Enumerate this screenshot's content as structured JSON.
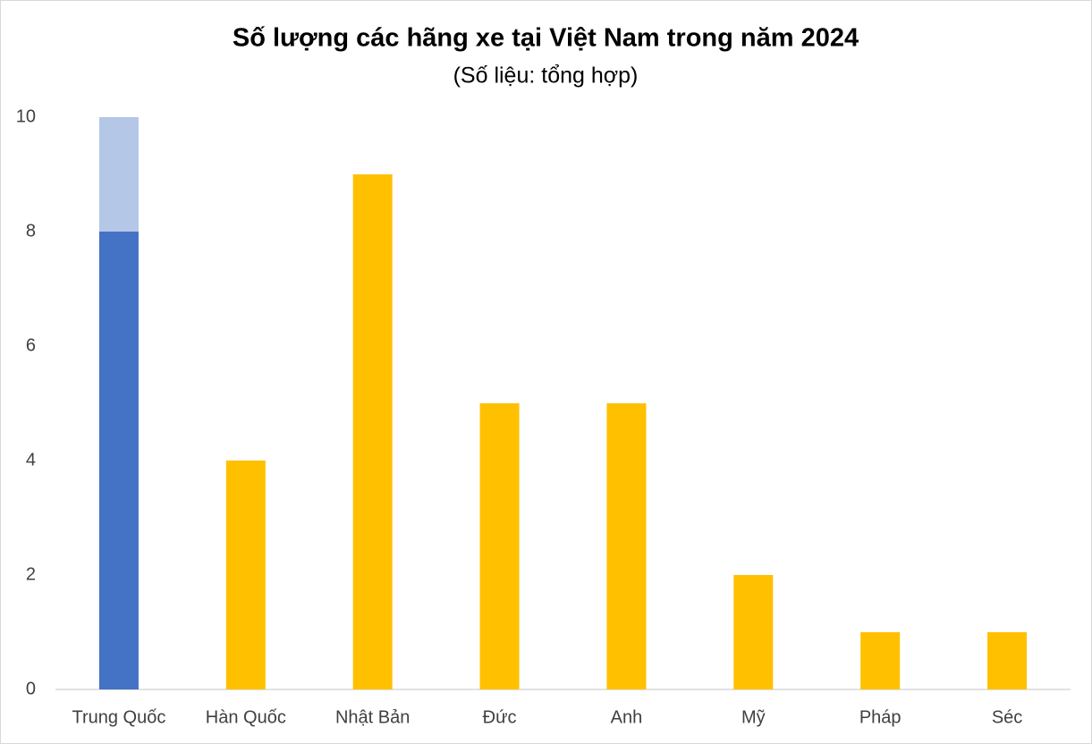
{
  "chart_data": {
    "type": "bar",
    "stacked": true,
    "title": "Số lượng các hãng xe tại Việt Nam trong năm 2024",
    "subtitle": "(Số liệu: tổng hợp)",
    "categories": [
      "Trung Quốc",
      "Hàn Quốc",
      "Nhật Bản",
      "Đức",
      "Anh",
      "Mỹ",
      "Pháp",
      "Séc"
    ],
    "series": [
      {
        "colors": [
          "#4472c4",
          "#ffc000",
          "#ffc000",
          "#ffc000",
          "#ffc000",
          "#ffc000",
          "#ffc000",
          "#ffc000"
        ],
        "values": [
          8,
          4,
          9,
          5,
          5,
          2,
          1,
          1
        ]
      },
      {
        "color": "#b4c7e7",
        "values": [
          2,
          null,
          null,
          null,
          null,
          null,
          null,
          null
        ]
      }
    ],
    "ylim": [
      0,
      10
    ],
    "yticks": [
      0,
      2,
      4,
      6,
      8,
      10
    ],
    "grid": false
  }
}
